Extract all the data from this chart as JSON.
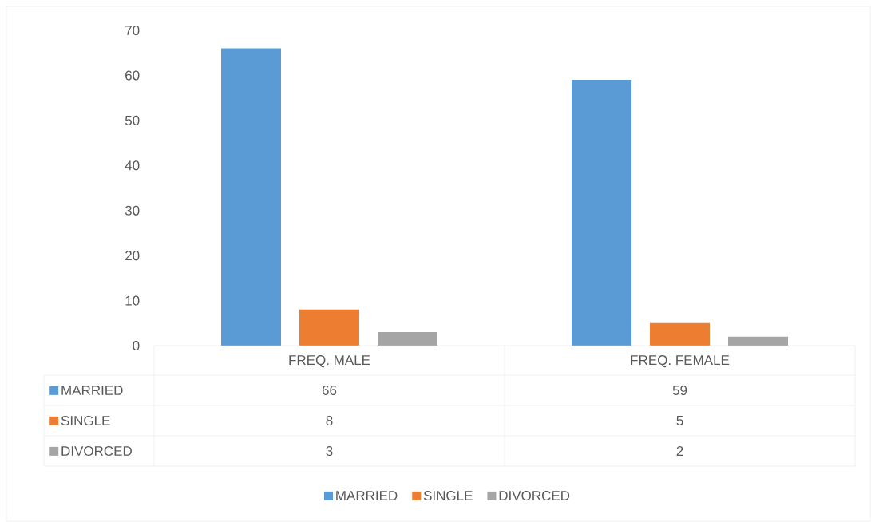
{
  "chart_data": {
    "type": "bar",
    "categories": [
      "FREQ. MALE",
      "FREQ. FEMALE"
    ],
    "series": [
      {
        "name": "MARRIED",
        "color": "#5b9bd5",
        "values": [
          66,
          59
        ]
      },
      {
        "name": "SINGLE",
        "color": "#ed7d31",
        "values": [
          8,
          5
        ]
      },
      {
        "name": "DIVORCED",
        "color": "#a5a5a5",
        "values": [
          3,
          2
        ]
      }
    ],
    "ylim": [
      0,
      70
    ],
    "yticks": [
      0,
      10,
      20,
      30,
      40,
      50,
      60,
      70
    ],
    "grid": false,
    "legend": "bottom",
    "data_labels": true
  }
}
